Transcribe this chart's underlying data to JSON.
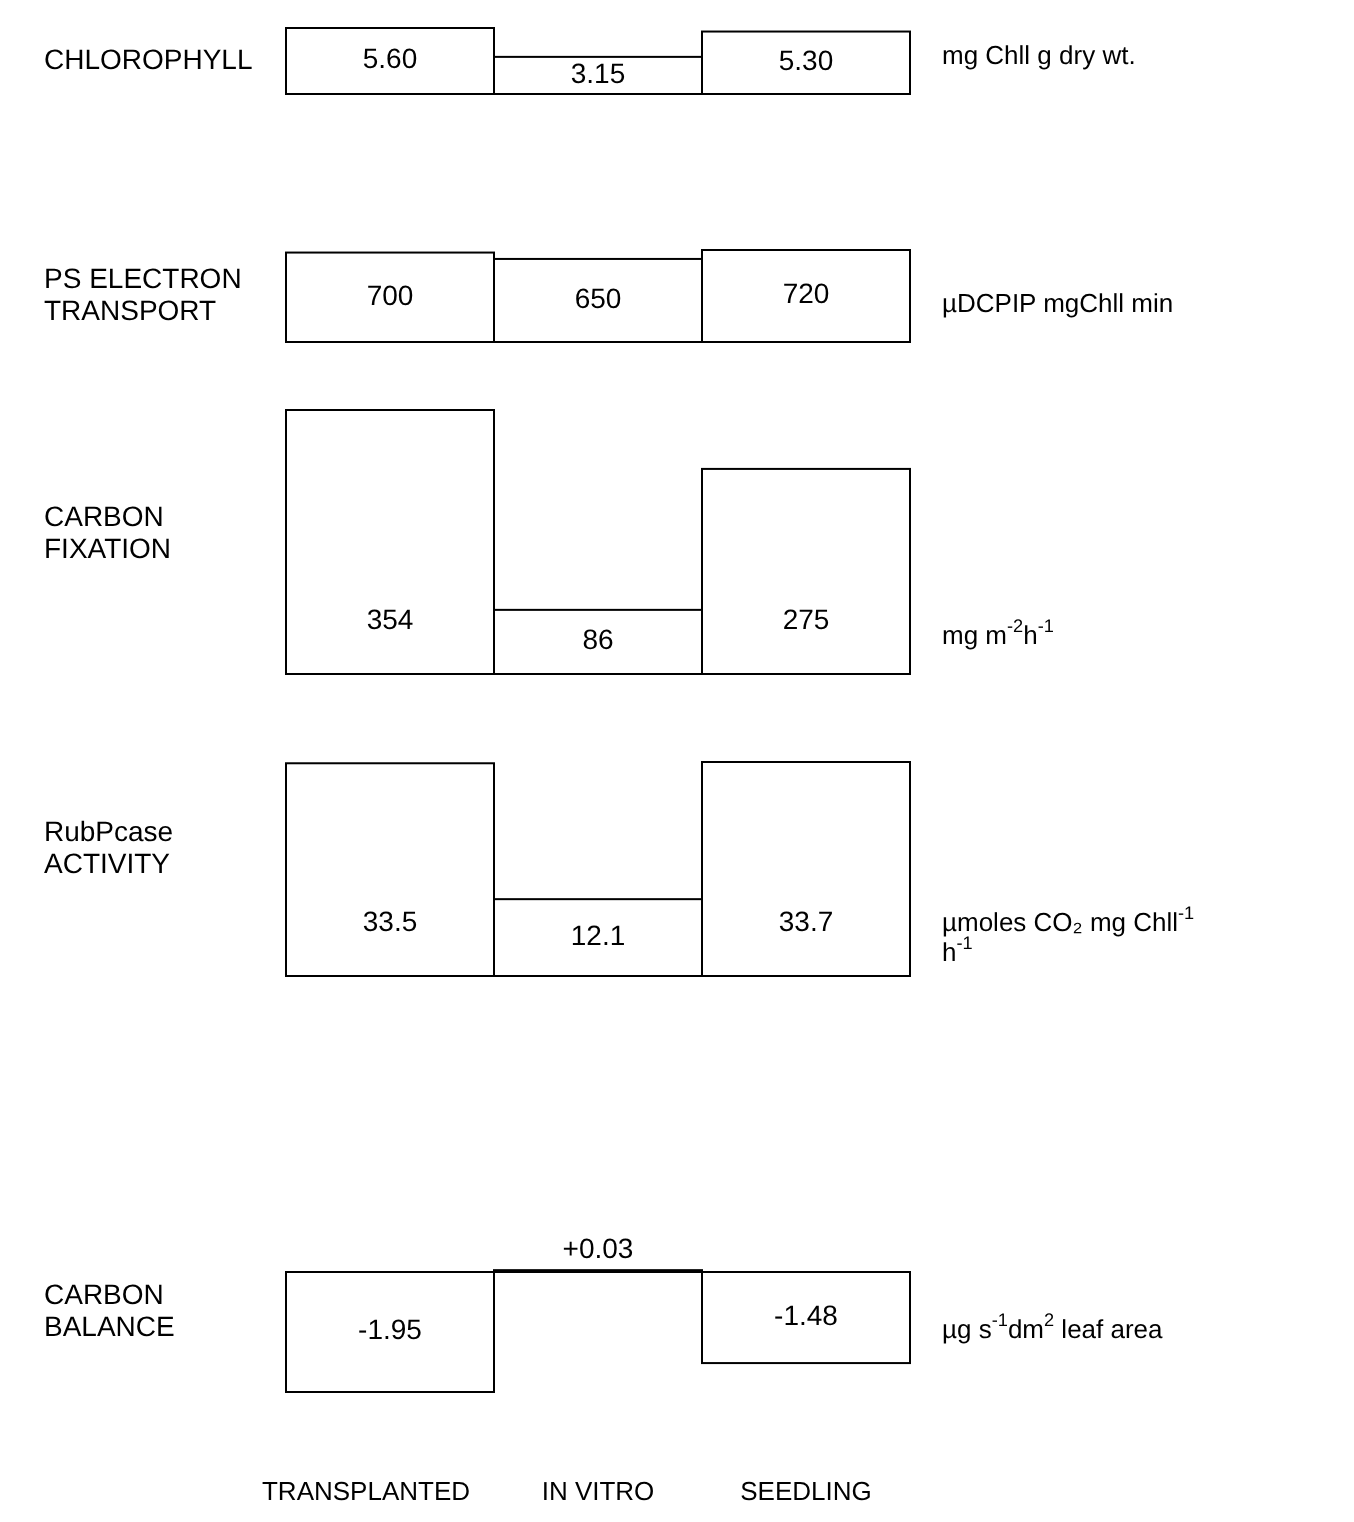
{
  "chart_data": [
    {
      "type": "bar",
      "ylabel": "CHLOROPHYLL",
      "categories": [
        null,
        null,
        null
      ],
      "values": [
        5.6,
        3.15,
        5.3
      ],
      "value_labels": [
        "5.60",
        "3.15",
        "5.30"
      ],
      "color": "#ffffff",
      "annotations": [
        "mg Chll g dry wt."
      ]
    },
    {
      "type": "bar",
      "ylabel": "PS ELECTRON\nTRANSPORT",
      "categories": [
        null,
        null,
        null
      ],
      "values": [
        700,
        650,
        720
      ],
      "value_labels": [
        "700",
        "650",
        "720"
      ],
      "color": "#ffffff",
      "annotations": [
        "µDCPIP mgChll min"
      ]
    },
    {
      "type": "bar",
      "ylabel": "CARBON\nFIXATION",
      "categories": [
        null,
        null,
        null
      ],
      "values": [
        354,
        86,
        275
      ],
      "value_labels": [
        "354",
        "86",
        "275"
      ],
      "color": "#ffffff",
      "annotations": [
        "mg m$^{-2}$h$^{-1}$"
      ]
    },
    {
      "type": "bar",
      "ylabel": "RubPcase\nACTIVITY",
      "categories": [
        null,
        null,
        null
      ],
      "values": [
        33.5,
        12.1,
        33.7
      ],
      "value_labels": [
        "33.5",
        "12.1",
        "33.7"
      ],
      "color": "#ffffff",
      "annotations": [
        "µmoles CO₂ mg Chll$^{-1}$\nh$^{-1}$"
      ]
    },
    {
      "type": "bar",
      "ylabel": "CARBON\nBALANCE",
      "categories": [
        "TRANSPLANTED",
        "IN VITRO",
        "SEEDLING"
      ],
      "values": [
        -1.95,
        0.03,
        -1.48
      ],
      "value_labels": [
        "-1.95",
        "+0.03",
        "-1.48"
      ],
      "color": "#ffffff",
      "annotations": [
        "µg s$^{-1}$dm$^{2}$ leaf area"
      ]
    }
  ]
}
